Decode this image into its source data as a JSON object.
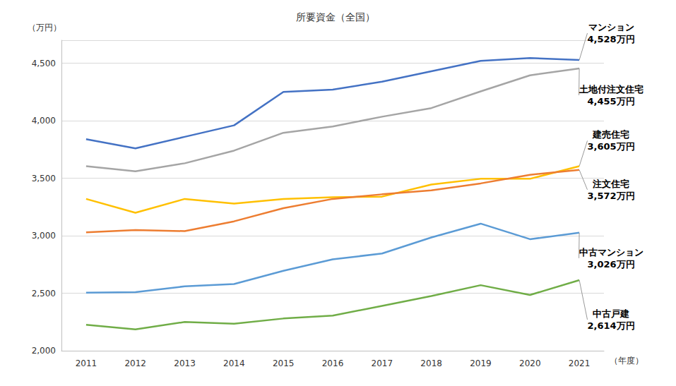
{
  "chart_data": {
    "type": "line",
    "title": "所要資金（全国）",
    "y_label": "（万円）",
    "x_label": "（年度）",
    "categories": [
      "2011",
      "2012",
      "2013",
      "2014",
      "2015",
      "2016",
      "2017",
      "2018",
      "2019",
      "2020",
      "2021"
    ],
    "series": [
      {
        "name": "マンション",
        "color": "#4472c4",
        "values": [
          3840,
          3760,
          3860,
          3960,
          4250,
          4270,
          4340,
          4430,
          4520,
          4545,
          4528
        ],
        "value_labels": [
          null,
          null,
          null,
          null,
          null,
          null,
          null,
          null,
          null,
          null,
          "4,528万円"
        ]
      },
      {
        "name": "土地付注文住宅",
        "color": "#a5a5a5",
        "values": [
          3605,
          3560,
          3630,
          3740,
          3895,
          3950,
          4035,
          4110,
          4255,
          4395,
          4455
        ],
        "value_labels": [
          null,
          null,
          null,
          null,
          null,
          null,
          null,
          null,
          null,
          null,
          "4,455万円"
        ]
      },
      {
        "name": "建売住宅",
        "color": "#ffc000",
        "values": [
          3320,
          3200,
          3320,
          3280,
          3320,
          3335,
          3340,
          3445,
          3495,
          3495,
          3605
        ],
        "value_labels": [
          null,
          null,
          null,
          null,
          null,
          null,
          null,
          null,
          null,
          null,
          "3,605万円"
        ]
      },
      {
        "name": "注文住宅",
        "color": "#ed7d31",
        "values": [
          3030,
          3050,
          3040,
          3125,
          3240,
          3320,
          3360,
          3395,
          3455,
          3530,
          3572
        ],
        "value_labels": [
          null,
          null,
          null,
          null,
          null,
          null,
          null,
          null,
          null,
          null,
          "3,572万円"
        ]
      },
      {
        "name": "中古マンション",
        "color": "#5b9bd5",
        "values": [
          2505,
          2510,
          2560,
          2580,
          2695,
          2795,
          2845,
          2985,
          3105,
          2970,
          3026
        ],
        "value_labels": [
          null,
          null,
          null,
          null,
          null,
          null,
          null,
          null,
          null,
          null,
          "3,026万円"
        ]
      },
      {
        "name": "中古戸建",
        "color": "#70ad47",
        "values": [
          2225,
          2185,
          2250,
          2235,
          2280,
          2305,
          2390,
          2475,
          2570,
          2485,
          2614
        ],
        "value_labels": [
          null,
          null,
          null,
          null,
          null,
          null,
          null,
          null,
          null,
          null,
          "2,614万円"
        ]
      }
    ],
    "ylim": [
      2000,
      4700
    ],
    "yticks": [
      {
        "value": 2000,
        "label": "2,000"
      },
      {
        "value": 2500,
        "label": "2,500"
      },
      {
        "value": 3000,
        "label": "3,000"
      },
      {
        "value": 3500,
        "label": "3,500"
      },
      {
        "value": 4000,
        "label": "4,000"
      },
      {
        "value": 4500,
        "label": "4,500"
      }
    ],
    "grid": true
  }
}
